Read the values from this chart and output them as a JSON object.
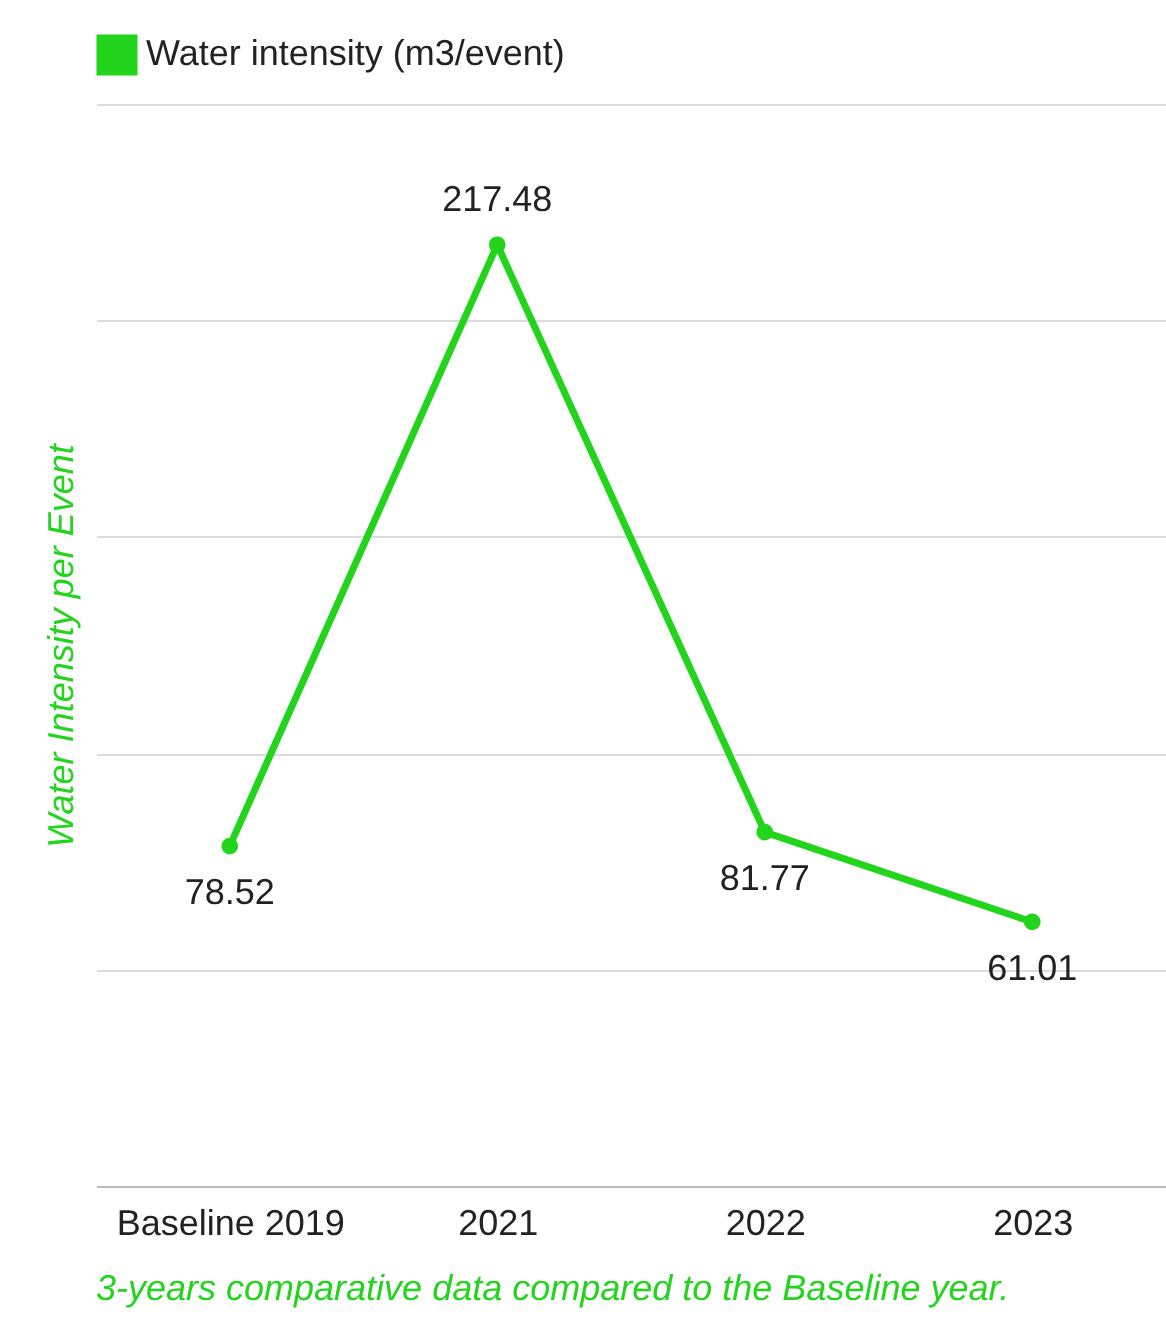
{
  "chart_data": {
    "type": "line",
    "categories": [
      "Baseline 2019",
      "2021",
      "2022",
      "2023"
    ],
    "series": [
      {
        "name": "Water intensity (m3/event)",
        "color": "#22d41c",
        "values": [
          78.52,
          217.48,
          81.77,
          61.01
        ]
      }
    ],
    "ylabel": "Water Intensity per Event",
    "ylim": [
      0,
      250
    ],
    "tick_labels": "x",
    "grid": "y",
    "legend": "top",
    "marker": "circle",
    "data_labels": true,
    "annotations": [
      "3-years comparative data compared to the Baseline year."
    ]
  }
}
